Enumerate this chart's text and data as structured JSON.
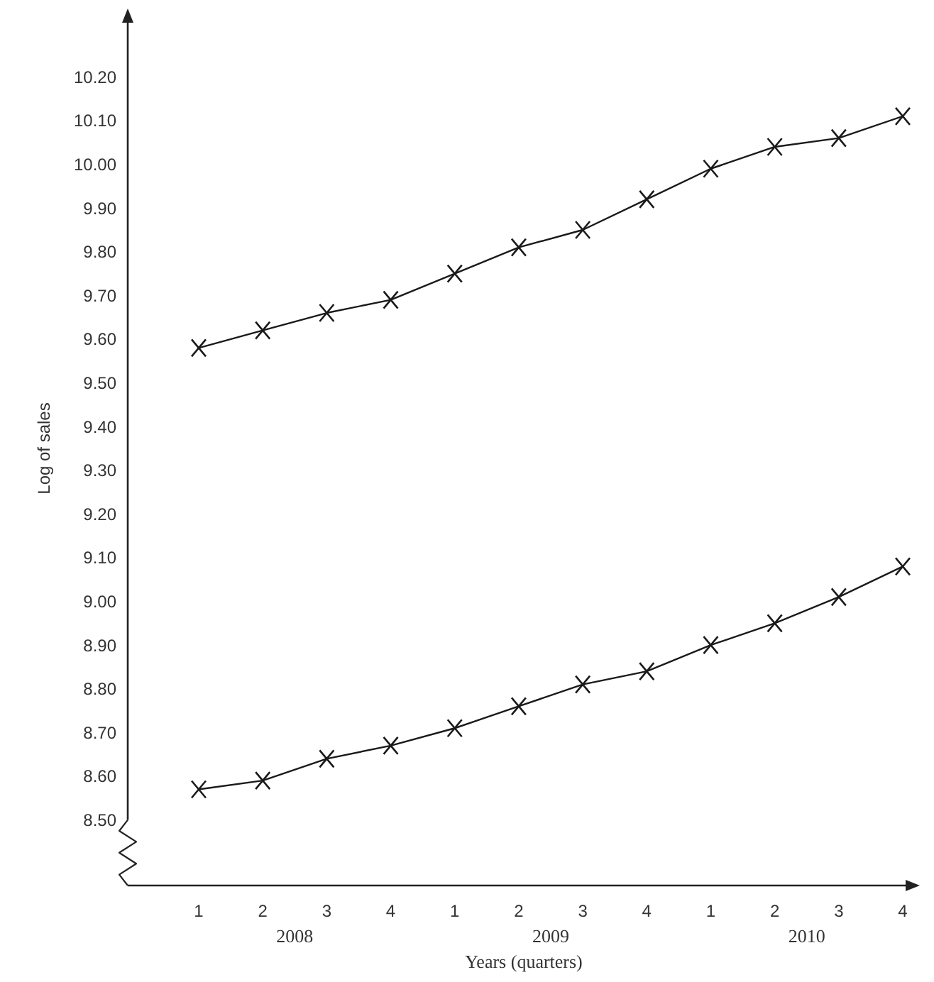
{
  "chart_data": {
    "type": "line",
    "xlabel": "Years (quarters)",
    "ylabel": "Log of sales",
    "categories": [
      "1",
      "2",
      "3",
      "4",
      "1",
      "2",
      "3",
      "4",
      "1",
      "2",
      "3",
      "4"
    ],
    "series": [
      {
        "color": "#1a1a1a",
        "values": [
          9.58,
          9.62,
          9.66,
          9.69,
          9.75,
          9.81,
          9.85,
          9.92,
          9.99,
          10.04,
          10.06,
          10.11
        ]
      },
      {
        "color": "#1a1a1a",
        "values": [
          8.57,
          8.59,
          8.64,
          8.67,
          8.71,
          8.76,
          8.81,
          8.84,
          8.9,
          8.95,
          9.01,
          9.08
        ]
      }
    ],
    "ylim": [
      8.35,
      10.35
    ],
    "yticks": [
      {
        "value": 8.5,
        "label": "8.50"
      },
      {
        "value": 8.6,
        "label": "8.60"
      },
      {
        "value": 8.7,
        "label": "8.70"
      },
      {
        "value": 8.8,
        "label": "8.80"
      },
      {
        "value": 8.9,
        "label": "8.90"
      },
      {
        "value": 9.0,
        "label": "9.00"
      },
      {
        "value": 9.1,
        "label": "9.10"
      },
      {
        "value": 9.2,
        "label": "9.20"
      },
      {
        "value": 9.3,
        "label": "9.30"
      },
      {
        "value": 9.4,
        "label": "9.40"
      },
      {
        "value": 9.5,
        "label": "9.50"
      },
      {
        "value": 9.6,
        "label": "9.60"
      },
      {
        "value": 9.7,
        "label": "9.70"
      },
      {
        "value": 9.8,
        "label": "9.80"
      },
      {
        "value": 9.9,
        "label": "9.90"
      },
      {
        "value": 10.0,
        "label": "10.00"
      },
      {
        "value": 10.1,
        "label": "10.10"
      },
      {
        "value": 10.2,
        "label": "10.20"
      }
    ],
    "marker": "cross",
    "line_style": "solid",
    "annotations": [
      "2008",
      "2009",
      "2010"
    ]
  }
}
